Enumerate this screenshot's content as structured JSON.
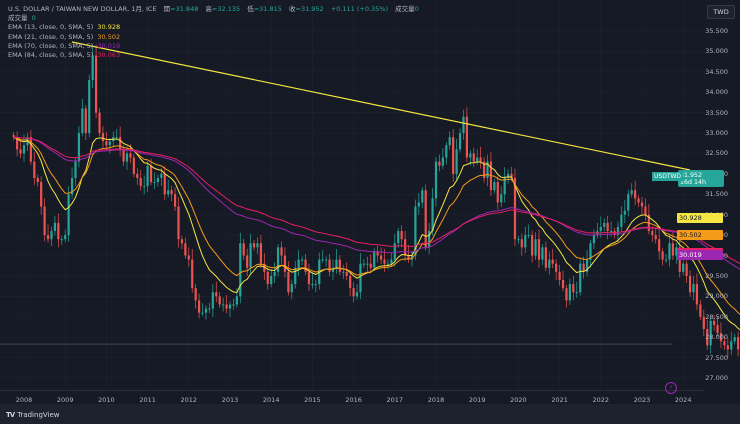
{
  "header": {
    "title": "U.S. DOLLAR / TAIWAN NEW DOLLAR, 1月, ICE",
    "open_label": "開",
    "open": "31.848",
    "high_label": "高",
    "high": "32.135",
    "low_label": "低",
    "low": "31.815",
    "close_label": "收",
    "close": "31.952",
    "change": "+0.111 (+0.35%)",
    "volume_label": "成交量",
    "volume": "0"
  },
  "volume_row": {
    "label": "成交量",
    "value": "0"
  },
  "indicators": [
    {
      "label": "EMA (13, close, 0, SMA, 5)",
      "value": "30.928",
      "color": "#f5e642"
    },
    {
      "label": "EMA (21, close, 0, SMA, 5)",
      "value": "30.502",
      "color": "#f59b1a"
    },
    {
      "label": "EMA (70, close, 0, SMA, 5)",
      "value": "30.019",
      "color": "#9c27b0"
    },
    {
      "label": "EMA (84, close, 0, SMA, 5)",
      "value": "30.063",
      "color": "#e91e63"
    }
  ],
  "currency_button": "TWD",
  "current_price": {
    "symbol": "USDTWD",
    "price": "31.952",
    "countdown": "16d 14h",
    "color": "#26a69a"
  },
  "price_tags": [
    {
      "value": "30.928",
      "color": "#f5e642",
      "price": 30.928
    },
    {
      "value": "30.502",
      "color": "#f59b1a",
      "price": 30.502
    },
    {
      "value": "30.063",
      "color": "#e91e63",
      "price": 30.063
    },
    {
      "value": "30.019",
      "color": "#9c27b0",
      "price": 30.019
    }
  ],
  "footer": {
    "brand": "TradingView"
  },
  "colors": {
    "up": "#26a69a",
    "down": "#ef5350",
    "trendline": "#f5e642",
    "background": "#161a25",
    "grid": "#1f2331"
  },
  "chart_data": {
    "type": "candlestick",
    "title": "U.S. DOLLAR / TAIWAN NEW DOLLAR, 1M, ICE",
    "xlabel": "",
    "ylabel": "TWD",
    "y_ticks": [
      35.5,
      35.0,
      34.5,
      34.0,
      33.5,
      33.0,
      32.5,
      32.0,
      31.5,
      31.0,
      30.5,
      30.0,
      29.5,
      29.0,
      28.5,
      28.0,
      27.5,
      27.0
    ],
    "y_tick_labels": [
      "35.500",
      "35.000",
      "34.500",
      "34.000",
      "33.500",
      "33.000",
      "32.500",
      "32.000",
      "31.500",
      "31.000",
      "30.500",
      "30.000",
      "29.500",
      "29.000",
      "28.500",
      "28.000",
      "27.500",
      "27.000"
    ],
    "x_ticks": [
      "2008",
      "2009",
      "2010",
      "2011",
      "2012",
      "2013",
      "2014",
      "2015",
      "2016",
      "2017",
      "2018",
      "2019",
      "2020",
      "2021",
      "2022",
      "2023",
      "2024"
    ],
    "ylim": [
      26.8,
      35.7
    ],
    "grid": true,
    "start_year": 2007.75,
    "monthly_close": [
      32.9,
      32.6,
      32.5,
      32.7,
      32.9,
      32.3,
      31.9,
      31.8,
      31.2,
      30.5,
      30.4,
      30.6,
      30.8,
      30.4,
      30.4,
      30.5,
      31.5,
      31.9,
      32.3,
      33.0,
      33.6,
      33.0,
      34.3,
      34.9,
      33.5,
      33.0,
      32.8,
      32.7,
      32.8,
      32.9,
      32.9,
      32.6,
      32.3,
      32.5,
      32.4,
      32.0,
      31.9,
      31.7,
      31.7,
      32.2,
      31.8,
      31.8,
      31.9,
      32.0,
      31.5,
      31.6,
      31.5,
      31.2,
      30.4,
      30.3,
      30.0,
      29.9,
      29.2,
      28.9,
      28.6,
      28.6,
      28.7,
      28.7,
      29.1,
      29.0,
      28.8,
      28.8,
      28.7,
      28.8,
      28.8,
      29.0,
      30.3,
      30.0,
      29.7,
      30.3,
      30.2,
      30.3,
      29.8,
      29.6,
      29.3,
      29.5,
      29.6,
      30.2,
      30.0,
      29.6,
      29.1,
      29.3,
      29.7,
      29.9,
      29.9,
      29.6,
      29.3,
      29.3,
      29.3,
      29.9,
      29.9,
      29.9,
      29.6,
      29.7,
      29.9,
      29.6,
      29.6,
      29.5,
      29.2,
      29.0,
      29.1,
      29.8,
      29.8,
      29.8,
      29.7,
      30.1,
      30.0,
      29.9,
      29.8,
      29.8,
      29.9,
      30.3,
      30.6,
      30.4,
      30.0,
      29.9,
      30.0,
      31.2,
      31.3,
      31.6,
      30.2,
      30.6,
      31.4,
      32.3,
      32.2,
      32.4,
      32.7,
      32.9,
      32.0,
      32.6,
      33.0,
      33.4,
      32.4,
      32.5,
      32.3,
      32.4,
      32.3,
      31.9,
      32.3,
      31.6,
      31.8,
      31.3,
      31.5,
      31.9,
      32.0,
      31.9,
      30.4,
      30.4,
      30.2,
      30.5,
      30.5,
      30.0,
      30.4,
      29.9,
      30.2,
      29.7,
      29.9,
      29.8,
      29.6,
      29.4,
      29.2,
      28.9,
      29.3,
      29.1,
      29.1,
      29.8,
      29.6,
      29.9,
      30.3,
      30.5,
      30.6,
      30.7,
      30.8,
      30.6,
      30.6,
      30.5,
      30.7,
      31.0,
      31.1,
      31.5,
      31.6,
      31.4,
      31.3,
      31.2,
      31.0,
      30.6,
      30.5,
      30.4,
      30.1,
      29.9,
      29.9,
      30.3,
      30.0,
      30.2,
      29.6,
      29.8,
      29.5,
      29.1,
      29.3,
      28.8,
      28.5,
      28.2,
      27.8,
      28.4,
      28.3,
      28.1,
      27.9,
      27.8,
      27.7,
      27.9,
      28.0,
      27.7,
      27.8,
      27.9,
      27.7,
      27.8,
      27.6,
      27.8,
      28.0,
      28.6,
      29.5,
      30.0,
      30.6,
      31.5,
      32.0,
      31.2,
      30.5,
      30.6,
      30.4,
      30.5,
      30.7,
      30.4,
      30.5,
      30.9,
      31.4,
      31.2,
      31.8,
      31.95
    ]
  }
}
